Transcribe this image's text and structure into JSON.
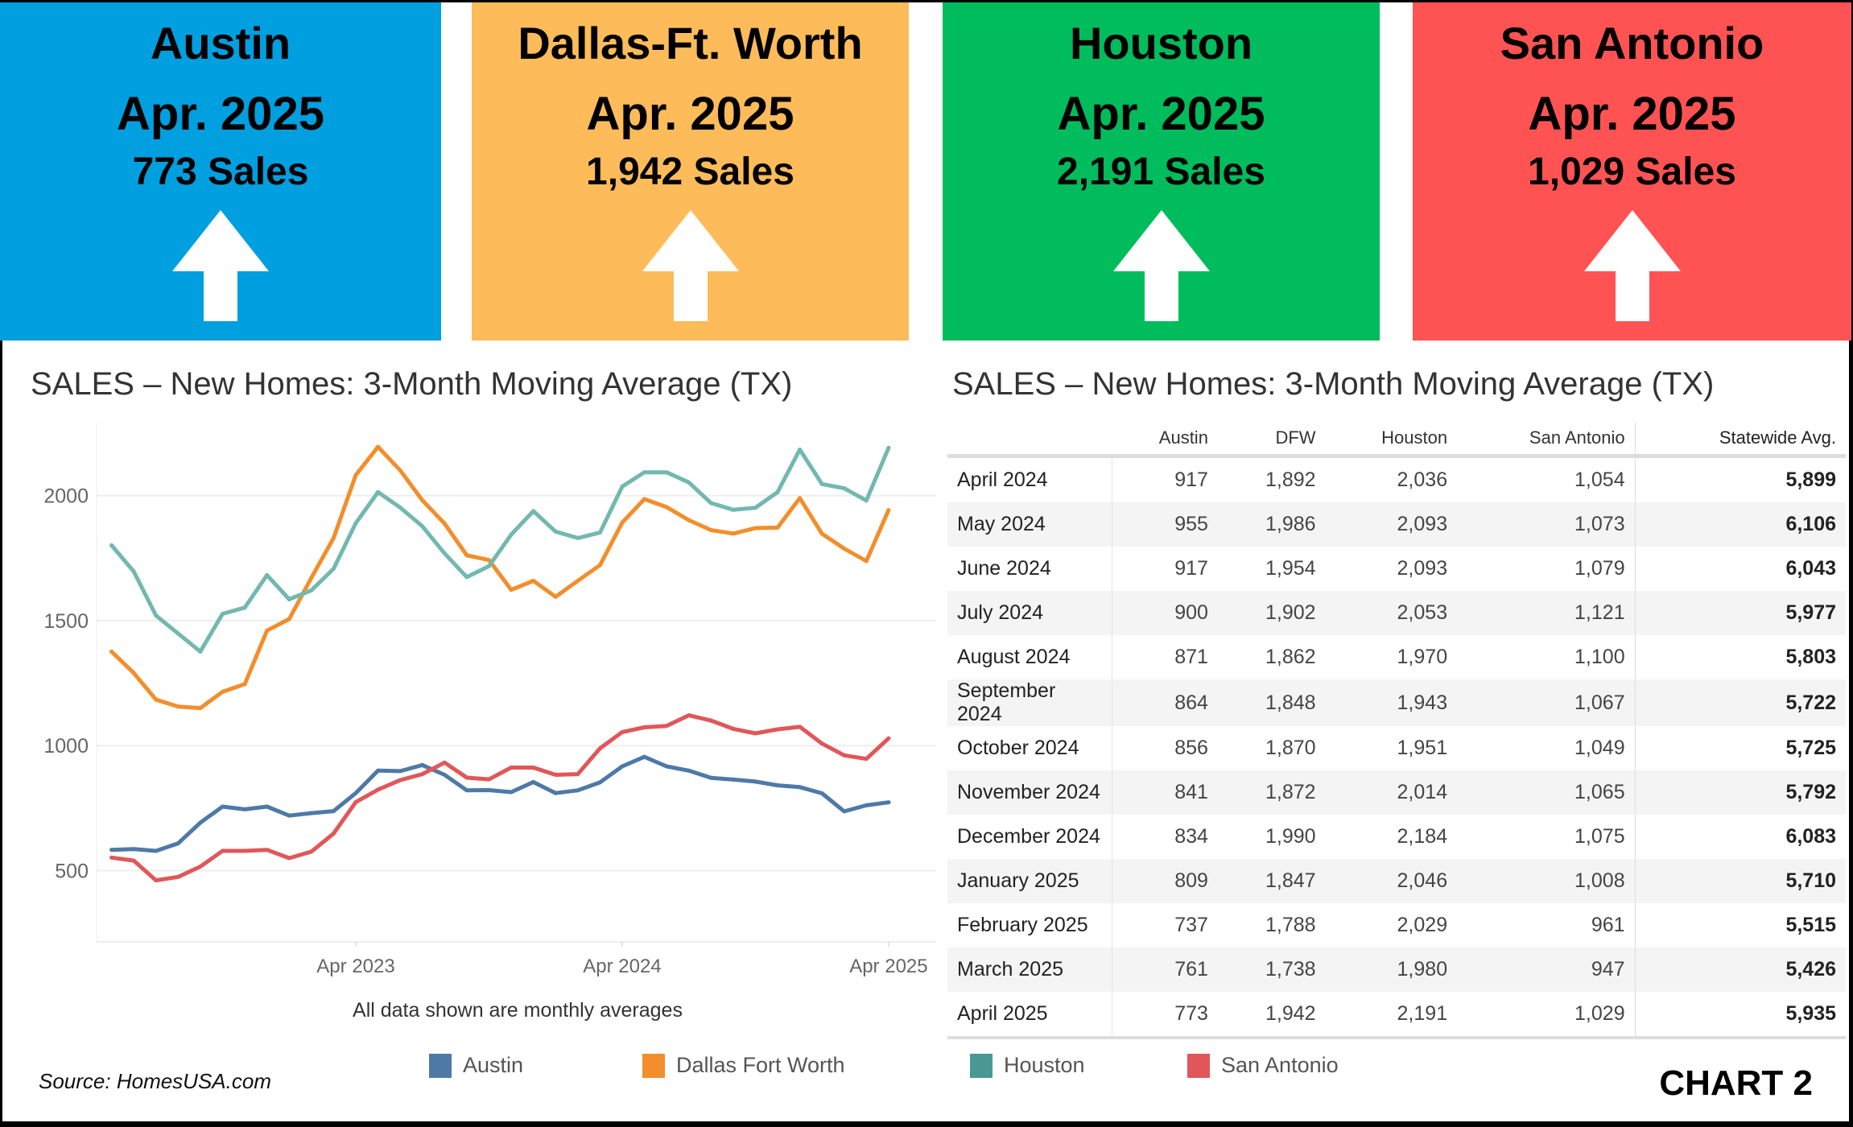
{
  "cards": [
    {
      "city": "Austin",
      "period": "Apr. 2025",
      "sales": "773 Sales",
      "color": "#009FDF",
      "trend": "up-arrow"
    },
    {
      "city": "Dallas-Ft. Worth",
      "period": "Apr. 2025",
      "sales": "1,942 Sales",
      "color": "#FDBB5A",
      "trend": "up-arrow"
    },
    {
      "city": "Houston",
      "period": "Apr. 2025",
      "sales": "2,191 Sales",
      "color": "#00BC5C",
      "trend": "up-arrow"
    },
    {
      "city": "San Antonio",
      "period": "Apr. 2025",
      "sales": "1,029 Sales",
      "color": "#FF5353",
      "trend": "up-arrow"
    }
  ],
  "left_title": "SALES – New Homes: 3-Month Moving Average (TX)",
  "right_title": "SALES – New Homes:  3-Month Moving Average (TX)",
  "caption": "All data shown are monthly averages",
  "source": "Source: HomesUSA.com",
  "chart_label": "CHART 2",
  "chart_data": {
    "type": "line",
    "title": "SALES – New Homes: 3-Month Moving Average (TX)",
    "xlabel": "All data shown are monthly averages",
    "ylabel": "",
    "x": [
      "2022-05",
      "2022-06",
      "2022-07",
      "2022-08",
      "2022-09",
      "2022-10",
      "2022-11",
      "2022-12",
      "2023-01",
      "2023-02",
      "2023-03",
      "2023-04",
      "2023-05",
      "2023-06",
      "2023-07",
      "2023-08",
      "2023-09",
      "2023-10",
      "2023-11",
      "2023-12",
      "2024-01",
      "2024-02",
      "2024-03",
      "2024-04",
      "2024-05",
      "2024-06",
      "2024-07",
      "2024-08",
      "2024-09",
      "2024-10",
      "2024-11",
      "2024-12",
      "2025-01",
      "2025-02",
      "2025-03",
      "2025-04"
    ],
    "x_ticks": [
      {
        "x": "2023-04",
        "label": "Apr 2023"
      },
      {
        "x": "2024-04",
        "label": "Apr 2024"
      },
      {
        "x": "2025-04",
        "label": "Apr 2025"
      }
    ],
    "y_ticks": [
      500,
      1000,
      1500,
      2000
    ],
    "ylim": [
      215,
      2295
    ],
    "grid": "horizontal",
    "legend": "bottom",
    "series": [
      {
        "name": "Austin",
        "color": "#4E79A7",
        "values": [
          583,
          586,
          579,
          609,
          692,
          756,
          745,
          756,
          720,
          730,
          738,
          810,
          900,
          898,
          922,
          883,
          821,
          822,
          814,
          854,
          810,
          821,
          853,
          917,
          955,
          917,
          900,
          871,
          864,
          856,
          841,
          834,
          809,
          737,
          761,
          773
        ]
      },
      {
        "name": "Dallas Fort Worth",
        "color": "#F28E2B",
        "values": [
          1376,
          1290,
          1184,
          1156,
          1150,
          1215,
          1246,
          1460,
          1506,
          1671,
          1830,
          2082,
          2195,
          2101,
          1981,
          1888,
          1761,
          1742,
          1623,
          1659,
          1595,
          1659,
          1722,
          1892,
          1986,
          1954,
          1902,
          1862,
          1848,
          1870,
          1872,
          1990,
          1847,
          1788,
          1738,
          1942
        ]
      },
      {
        "name": "Houston",
        "color": "#72B8B0",
        "values": [
          1801,
          1696,
          1520,
          1448,
          1376,
          1527,
          1552,
          1682,
          1585,
          1621,
          1707,
          1890,
          2014,
          1952,
          1877,
          1769,
          1674,
          1718,
          1844,
          1938,
          1856,
          1830,
          1852,
          2036,
          2093,
          2093,
          2053,
          1970,
          1943,
          1951,
          2014,
          2184,
          2046,
          2029,
          1980,
          2191
        ]
      },
      {
        "name": "San Antonio",
        "color": "#E15759",
        "values": [
          552,
          540,
          461,
          475,
          516,
          579,
          579,
          583,
          550,
          576,
          648,
          774,
          824,
          862,
          886,
          932,
          872,
          865,
          912,
          912,
          883,
          886,
          989,
          1054,
          1073,
          1079,
          1121,
          1100,
          1067,
          1049,
          1065,
          1075,
          1008,
          961,
          947,
          1029
        ]
      }
    ]
  },
  "legend": [
    {
      "label": "Austin",
      "color": "#4E79A7"
    },
    {
      "label": "Dallas Fort Worth",
      "color": "#F28E2B"
    },
    {
      "label": "Houston",
      "color": "#499894"
    },
    {
      "label": "San Antonio",
      "color": "#E15759"
    }
  ],
  "table": {
    "columns": [
      "",
      "Austin",
      "DFW",
      "Houston",
      "San Antonio",
      "Statewide Avg."
    ],
    "rows": [
      [
        "April 2024",
        "917",
        "1,892",
        "2,036",
        "1,054",
        "5,899"
      ],
      [
        "May 2024",
        "955",
        "1,986",
        "2,093",
        "1,073",
        "6,106"
      ],
      [
        "June 2024",
        "917",
        "1,954",
        "2,093",
        "1,079",
        "6,043"
      ],
      [
        "July 2024",
        "900",
        "1,902",
        "2,053",
        "1,121",
        "5,977"
      ],
      [
        "August 2024",
        "871",
        "1,862",
        "1,970",
        "1,100",
        "5,803"
      ],
      [
        "September 2024",
        "864",
        "1,848",
        "1,943",
        "1,067",
        "5,722"
      ],
      [
        "October 2024",
        "856",
        "1,870",
        "1,951",
        "1,049",
        "5,725"
      ],
      [
        "November 2024",
        "841",
        "1,872",
        "2,014",
        "1,065",
        "5,792"
      ],
      [
        "December 2024",
        "834",
        "1,990",
        "2,184",
        "1,075",
        "6,083"
      ],
      [
        "January 2025",
        "809",
        "1,847",
        "2,046",
        "1,008",
        "5,710"
      ],
      [
        "February 2025",
        "737",
        "1,788",
        "2,029",
        "961",
        "5,515"
      ],
      [
        "March 2025",
        "761",
        "1,738",
        "1,980",
        "947",
        "5,426"
      ],
      [
        "April 2025",
        "773",
        "1,942",
        "2,191",
        "1,029",
        "5,935"
      ]
    ]
  }
}
